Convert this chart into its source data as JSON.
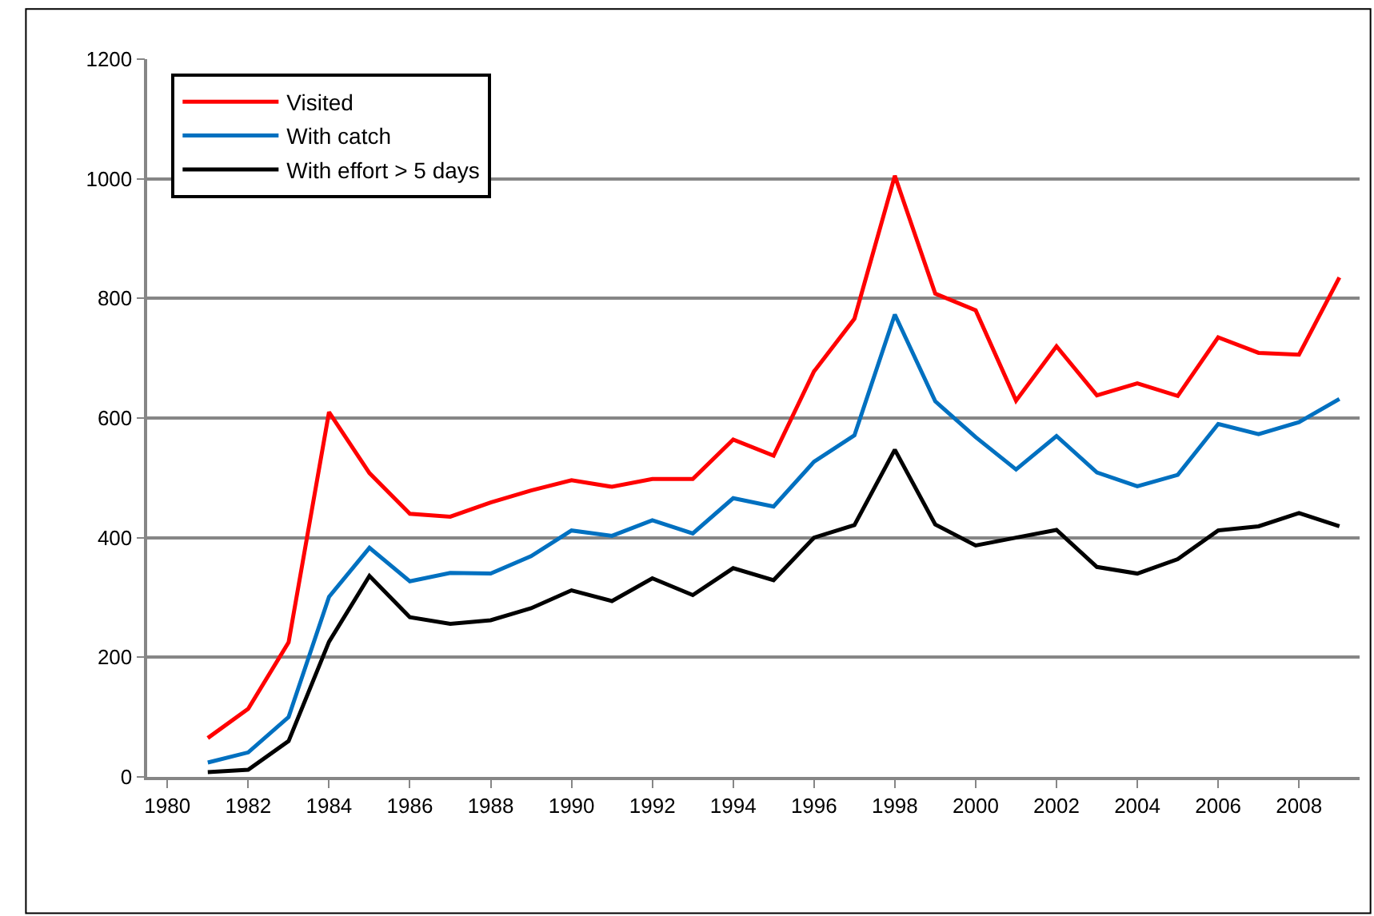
{
  "chart_data": {
    "type": "line",
    "x": [
      1981,
      1982,
      1983,
      1984,
      1985,
      1986,
      1987,
      1988,
      1989,
      1990,
      1991,
      1992,
      1993,
      1994,
      1995,
      1996,
      1997,
      1998,
      1999,
      2000,
      2001,
      2002,
      2003,
      2004,
      2005,
      2006,
      2007,
      2008,
      2009
    ],
    "series": [
      {
        "name": "Visited",
        "color": "#ff0000",
        "values": [
          65,
          114,
          225,
          610,
          508,
          440,
          435,
          459,
          479,
          496,
          485,
          498,
          498,
          564,
          537,
          678,
          766,
          1005,
          808,
          780,
          629,
          720,
          638,
          658,
          637,
          735,
          709,
          706,
          835
        ]
      },
      {
        "name": "With catch",
        "color": "#0070c0",
        "values": [
          24,
          41,
          100,
          301,
          383,
          327,
          341,
          340,
          369,
          412,
          403,
          429,
          407,
          466,
          452,
          527,
          571,
          773,
          628,
          568,
          514,
          570,
          509,
          486,
          505,
          590,
          573,
          593,
          632
        ]
      },
      {
        "name": "With effort > 5 days",
        "color": "#000000",
        "values": [
          8,
          12,
          60,
          226,
          336,
          267,
          256,
          262,
          282,
          312,
          294,
          332,
          304,
          349,
          329,
          400,
          421,
          547,
          422,
          387,
          400,
          413,
          351,
          340,
          364,
          412,
          419,
          441,
          419
        ]
      }
    ],
    "xlim": [
      1979.5,
      2009.5
    ],
    "xticks": [
      1980,
      1982,
      1984,
      1986,
      1988,
      1990,
      1992,
      1994,
      1996,
      1998,
      2000,
      2002,
      2004,
      2006,
      2008
    ],
    "ylim": [
      0,
      1200
    ],
    "yticks": [
      0,
      200,
      400,
      600,
      800,
      1000,
      1200
    ],
    "grid": "y",
    "legend": "top left",
    "marker": "none",
    "line_style": "solid"
  }
}
